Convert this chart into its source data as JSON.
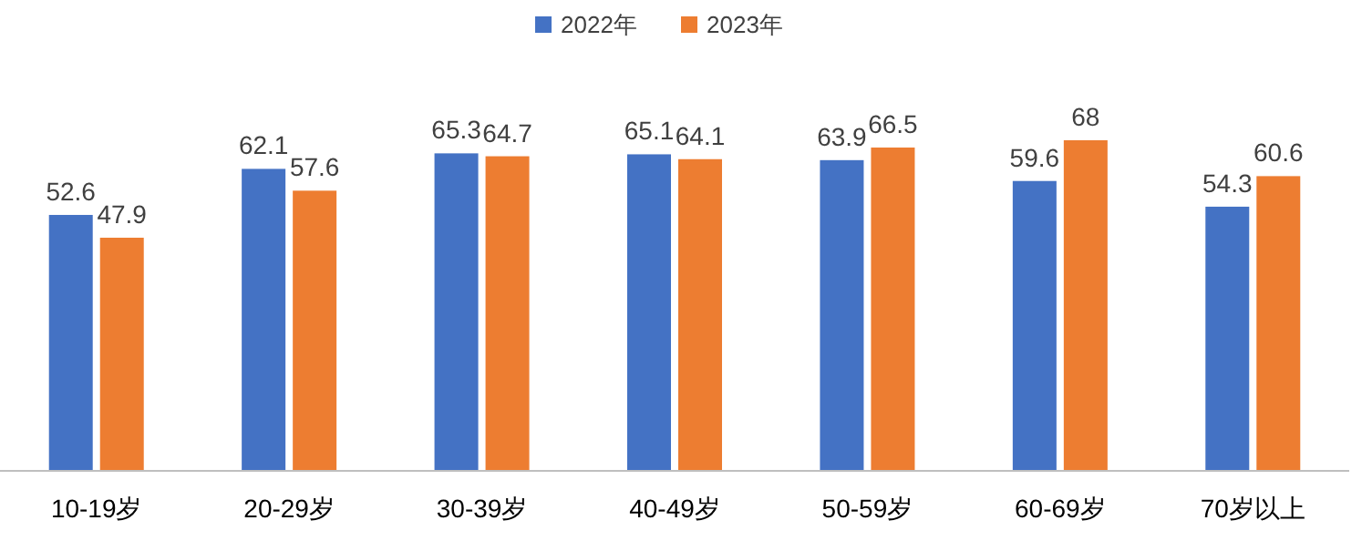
{
  "chart_data": {
    "type": "bar",
    "categories": [
      "10-19岁",
      "20-29岁",
      "30-39岁",
      "40-49岁",
      "50-59岁",
      "60-69岁",
      "70岁以上"
    ],
    "series": [
      {
        "name": "2022年",
        "color": "#4472c4",
        "values": [
          52.6,
          62.1,
          65.3,
          65.1,
          63.9,
          59.6,
          54.3
        ]
      },
      {
        "name": "2023年",
        "color": "#ed7d31",
        "values": [
          47.9,
          57.6,
          64.7,
          64.1,
          66.5,
          68,
          60.6
        ]
      }
    ],
    "data_labels": true,
    "legend": "top",
    "grid": false
  }
}
